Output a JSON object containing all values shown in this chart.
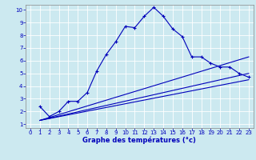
{
  "xlabel": "Graphe des températures (°c)",
  "bg_color": "#cce9f0",
  "line_color": "#0000bb",
  "xlim": [
    -0.5,
    23.5
  ],
  "ylim": [
    0.7,
    10.4
  ],
  "xticks": [
    0,
    1,
    2,
    3,
    4,
    5,
    6,
    7,
    8,
    9,
    10,
    11,
    12,
    13,
    14,
    15,
    16,
    17,
    18,
    19,
    20,
    21,
    22,
    23
  ],
  "yticks": [
    1,
    2,
    3,
    4,
    5,
    6,
    7,
    8,
    9,
    10
  ],
  "line1_x": [
    1,
    2,
    3,
    4,
    5,
    6,
    7,
    8,
    9,
    10,
    11,
    12,
    13,
    14,
    15,
    16,
    17,
    18,
    19,
    20,
    21,
    22,
    23
  ],
  "line1_y": [
    2.4,
    1.6,
    2.0,
    2.8,
    2.8,
    3.5,
    5.2,
    6.5,
    7.5,
    8.7,
    8.6,
    9.5,
    10.2,
    9.5,
    8.5,
    7.9,
    6.3,
    6.3,
    5.8,
    5.5,
    5.5,
    5.0,
    4.7
  ],
  "line2_x": [
    1,
    23
  ],
  "line2_y": [
    1.3,
    6.3
  ],
  "line3_x": [
    1,
    23
  ],
  "line3_y": [
    1.3,
    5.0
  ],
  "line4_x": [
    1,
    23
  ],
  "line4_y": [
    1.3,
    4.5
  ],
  "marker": "+"
}
